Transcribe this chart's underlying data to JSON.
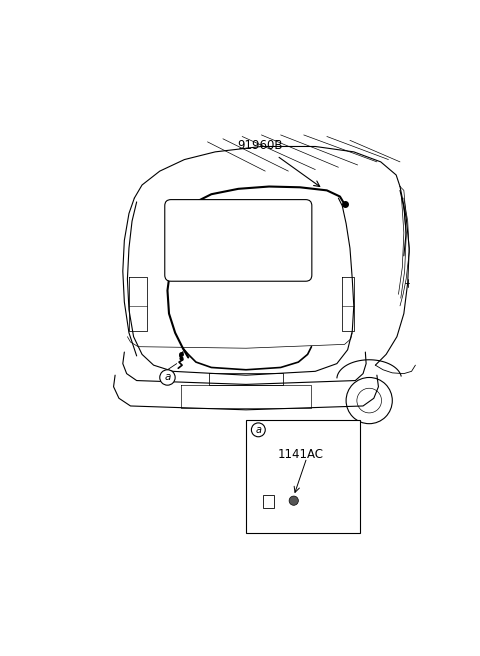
{
  "bg_color": "#ffffff",
  "line_color": "#000000",
  "label_91960B": "91960B",
  "label_a": "a",
  "label_1141AC": "1141AC",
  "fig_width": 4.8,
  "fig_height": 6.56,
  "dpi": 100
}
